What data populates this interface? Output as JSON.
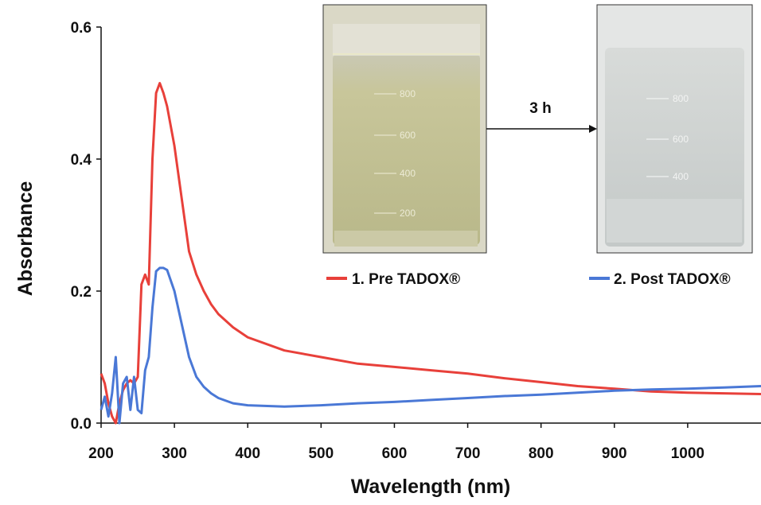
{
  "chart_data": {
    "type": "line",
    "title": "",
    "xlabel": "Wavelength (nm)",
    "ylabel": "Absorbance",
    "xlim": [
      200,
      1100
    ],
    "ylim": [
      0,
      0.6
    ],
    "xticks": [
      200,
      300,
      400,
      500,
      600,
      700,
      800,
      900,
      1000
    ],
    "yticks": [
      0.0,
      0.2,
      0.4,
      0.6
    ],
    "xtick_labels": [
      "200",
      "300",
      "400",
      "500",
      "600",
      "700",
      "800",
      "900",
      "1000"
    ],
    "ytick_labels": [
      "0.0",
      "0.2",
      "0.4",
      "0.6"
    ],
    "grid": false,
    "legend_placement": "top-right",
    "series": [
      {
        "name": "1. Pre TADOX®",
        "color": "#e8403a",
        "x": [
          200,
          205,
          210,
          215,
          220,
          225,
          230,
          235,
          240,
          245,
          250,
          255,
          260,
          265,
          270,
          275,
          280,
          285,
          290,
          300,
          310,
          320,
          330,
          340,
          350,
          360,
          380,
          400,
          450,
          500,
          550,
          600,
          650,
          700,
          750,
          800,
          850,
          900,
          950,
          1000,
          1050,
          1100
        ],
        "y": [
          0.075,
          0.06,
          0.03,
          0.01,
          0.0,
          0.03,
          0.05,
          0.06,
          0.065,
          0.06,
          0.07,
          0.21,
          0.225,
          0.21,
          0.4,
          0.5,
          0.515,
          0.5,
          0.48,
          0.42,
          0.34,
          0.26,
          0.225,
          0.2,
          0.18,
          0.165,
          0.145,
          0.13,
          0.11,
          0.1,
          0.09,
          0.085,
          0.08,
          0.075,
          0.068,
          0.062,
          0.056,
          0.052,
          0.048,
          0.046,
          0.045,
          0.044
        ]
      },
      {
        "name": "2. Post TADOX®",
        "color": "#4a78d6",
        "x": [
          200,
          205,
          210,
          215,
          220,
          225,
          230,
          235,
          240,
          245,
          250,
          255,
          260,
          265,
          270,
          275,
          280,
          285,
          290,
          300,
          310,
          320,
          330,
          340,
          350,
          360,
          380,
          400,
          450,
          500,
          550,
          600,
          650,
          700,
          750,
          800,
          850,
          900,
          950,
          1000,
          1050,
          1100
        ],
        "y": [
          0.02,
          0.04,
          0.01,
          0.045,
          0.1,
          0.0,
          0.06,
          0.07,
          0.02,
          0.07,
          0.02,
          0.015,
          0.08,
          0.1,
          0.175,
          0.23,
          0.235,
          0.235,
          0.232,
          0.2,
          0.15,
          0.1,
          0.07,
          0.055,
          0.045,
          0.038,
          0.03,
          0.027,
          0.025,
          0.027,
          0.03,
          0.032,
          0.035,
          0.038,
          0.041,
          0.043,
          0.046,
          0.049,
          0.051,
          0.052,
          0.054,
          0.056
        ]
      }
    ]
  },
  "inset": {
    "arrow_label": "3 h",
    "photo_pre_name": "beaker-pre-tadox",
    "photo_post_name": "beaker-post-tadox",
    "beaker_marks_pre": [
      "800",
      "600",
      "400",
      "200"
    ],
    "beaker_marks_post": [
      "800",
      "600",
      "400"
    ]
  }
}
